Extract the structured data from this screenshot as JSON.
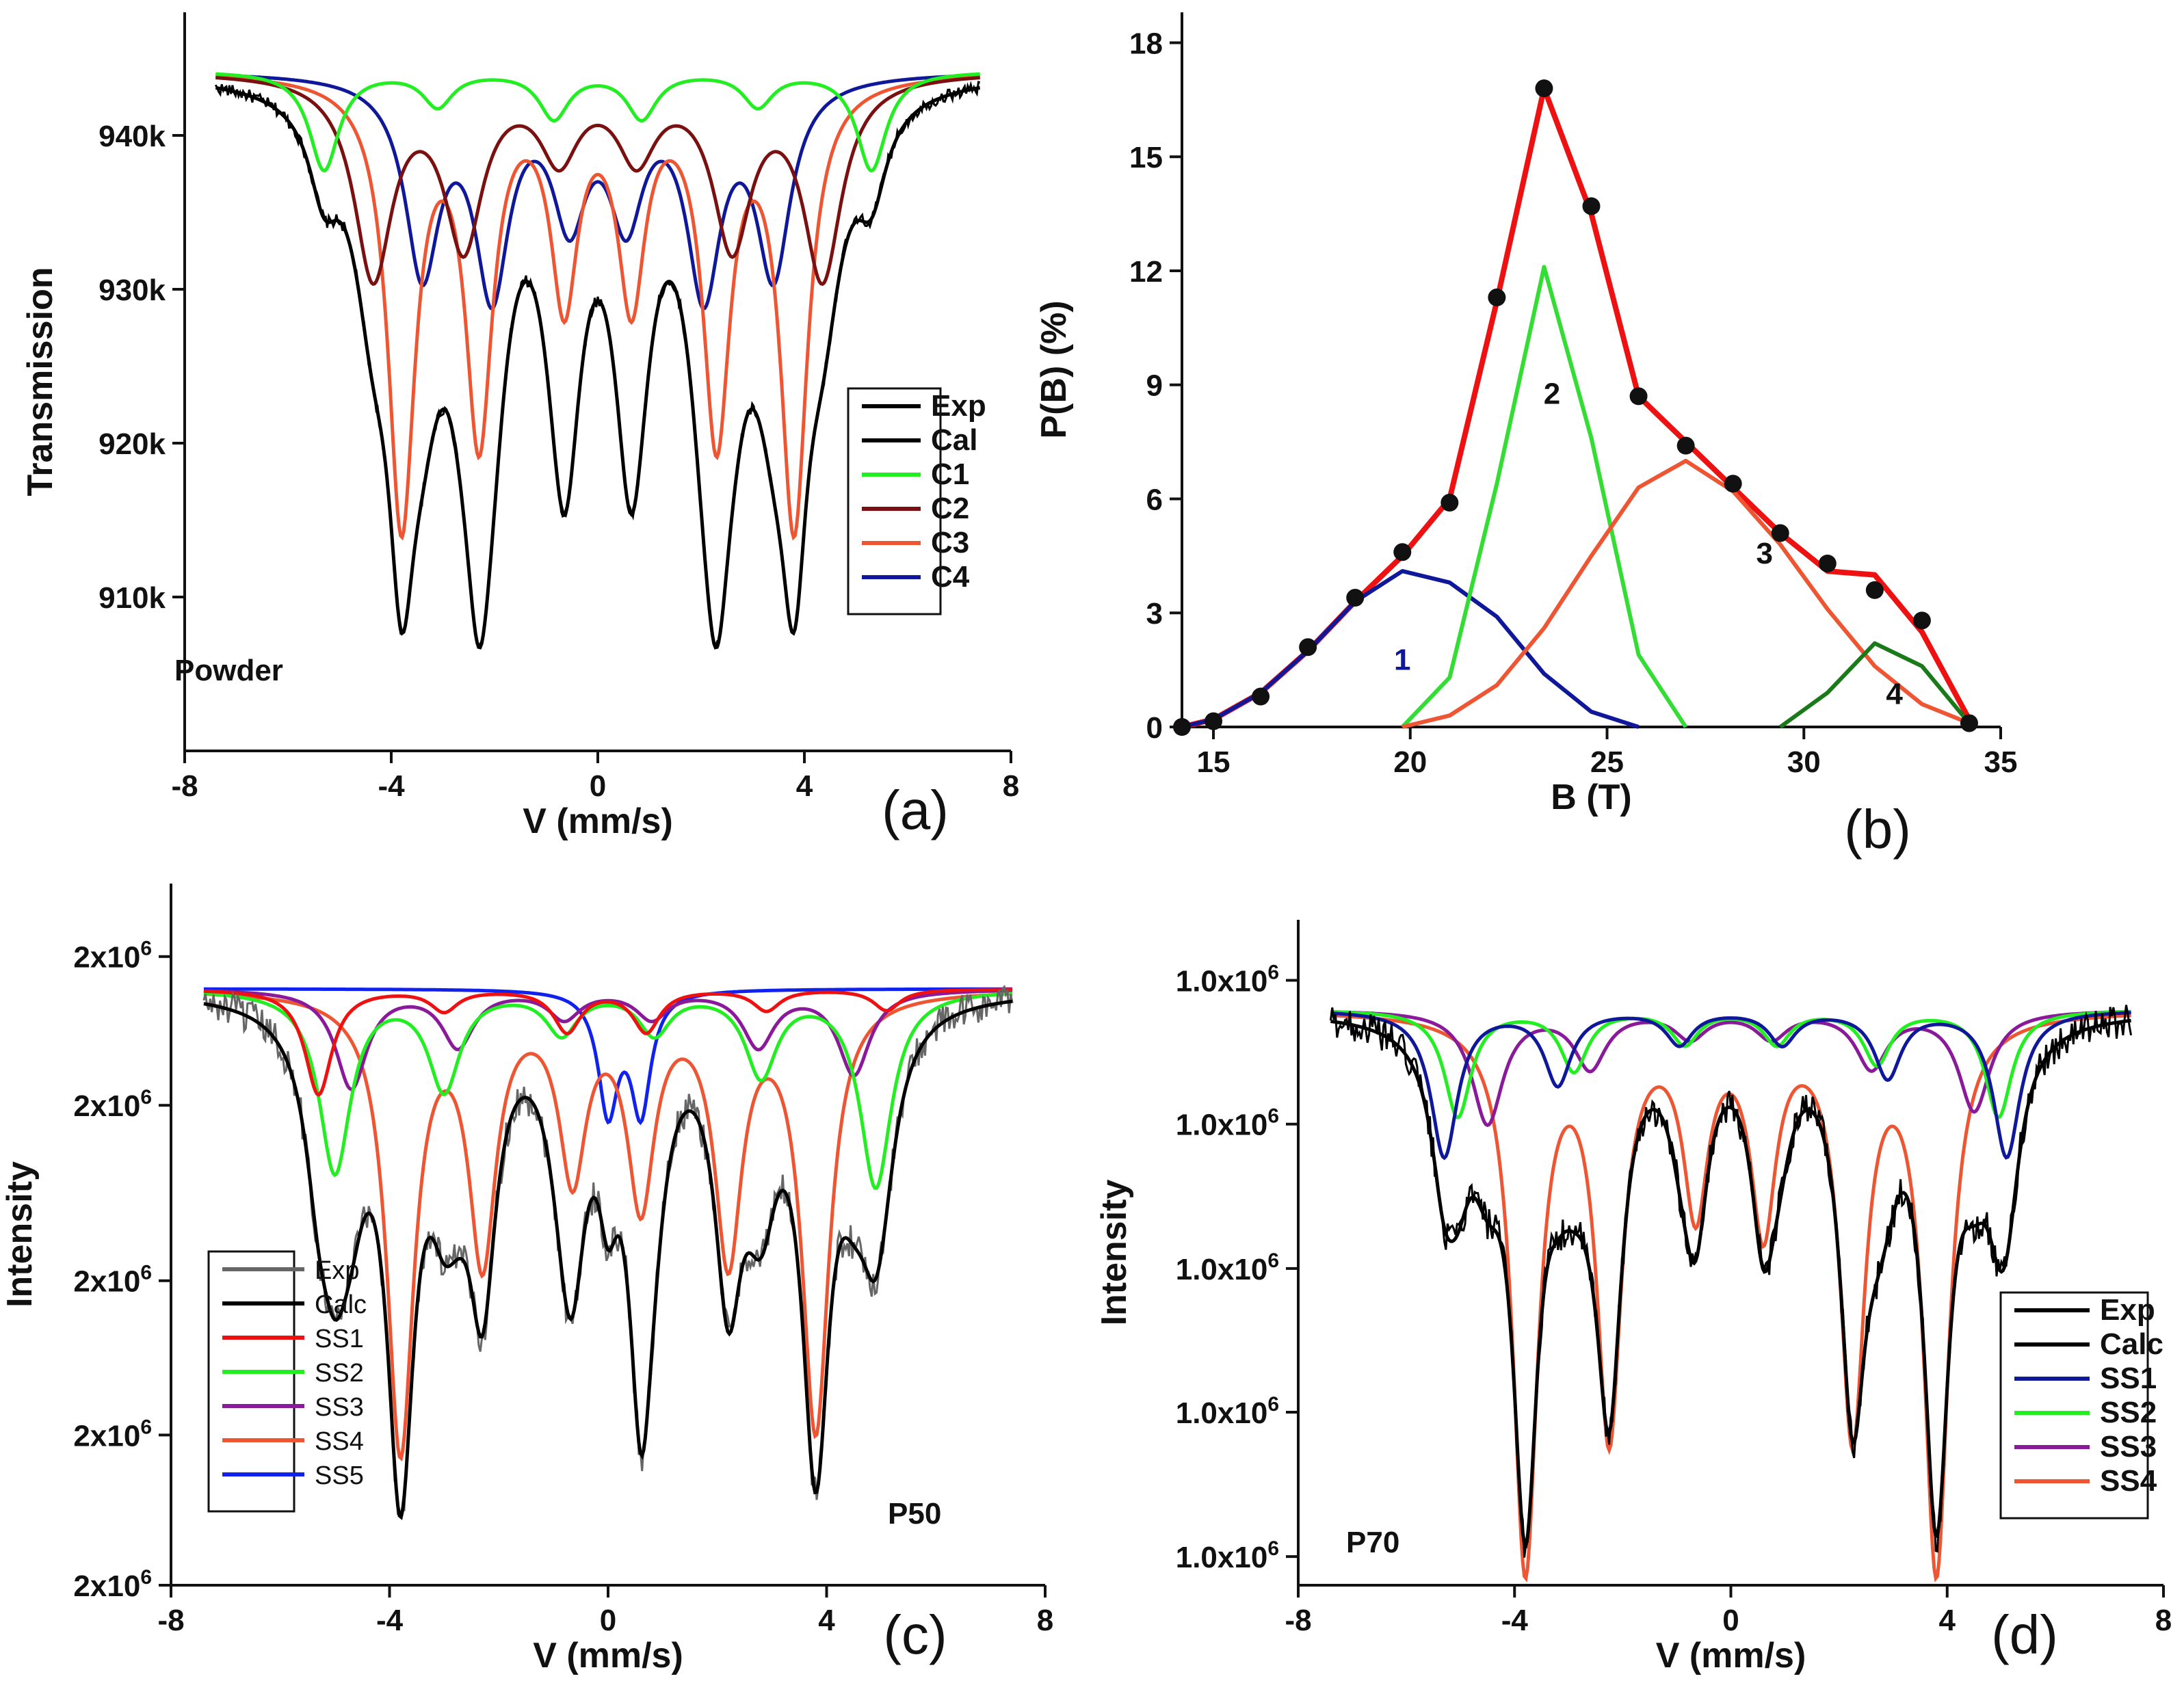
{
  "chart_data": [
    {
      "id": "a",
      "type": "line",
      "panel_caption": "(a)",
      "sample_label": "Powder",
      "xlabel": "V (mm/s)",
      "ylabel": "Transmission",
      "xlim": [
        -8,
        8
      ],
      "ylim": [
        900,
        948
      ],
      "xticks": [
        "-8",
        "-4",
        "0",
        "4",
        "8"
      ],
      "xtick_values": [
        -8,
        -4,
        0,
        4,
        8
      ],
      "yticks": [
        "910k",
        "920k",
        "930k",
        "940k"
      ],
      "ytick_values": [
        910,
        920,
        930,
        940
      ],
      "baseline": 944.2,
      "noise_amplitude": 0.4,
      "legend": [
        {
          "name": "Exp",
          "color": "#000000"
        },
        {
          "name": "Cal",
          "color": "#000000"
        },
        {
          "name": "C1",
          "color": "#22ee22"
        },
        {
          "name": "C2",
          "color": "#7a1010"
        },
        {
          "name": "C3",
          "color": "#ee5533"
        },
        {
          "name": "C4",
          "color": "#10189a"
        }
      ],
      "series": [
        {
          "name": "C1",
          "color": "#22ee22",
          "center": 0.0,
          "hyperfine": [
            -5.3,
            -3.1,
            -0.85,
            0.85,
            3.1,
            5.3
          ],
          "depth": [
            6.4,
            2.2,
            3.0,
            3.0,
            2.2,
            6.4
          ],
          "width": 0.35
        },
        {
          "name": "C2",
          "color": "#7a1010",
          "center": 0.0,
          "hyperfine": [
            -4.35,
            -2.6,
            -0.75,
            0.75,
            2.6,
            4.35
          ],
          "depth": [
            13.0,
            10.8,
            5.0,
            5.0,
            10.8,
            13.0
          ],
          "width": 0.45
        },
        {
          "name": "C3",
          "color": "#ee5533",
          "center": 0.0,
          "hyperfine": [
            -3.8,
            -2.3,
            -0.65,
            0.65,
            2.3,
            3.8
          ],
          "depth": [
            29.0,
            23.0,
            14.0,
            14.0,
            23.0,
            29.0
          ],
          "width": 0.32
        },
        {
          "name": "C4",
          "color": "#10189a",
          "center": 0.0,
          "hyperfine": [
            -3.4,
            -2.05,
            -0.55,
            0.55,
            2.05,
            3.4
          ],
          "depth": [
            12.5,
            13.5,
            8.5,
            8.5,
            13.5,
            12.5
          ],
          "width": 0.4
        }
      ]
    },
    {
      "id": "b",
      "type": "line",
      "panel_caption": "(b)",
      "xlabel": "B (T)",
      "ylabel": "P(B) (%)",
      "xlim": [
        14.2,
        35
      ],
      "ylim": [
        0,
        18.8
      ],
      "xticks": [
        "15",
        "20",
        "25",
        "30",
        "35"
      ],
      "xtick_values": [
        15,
        20,
        25,
        30,
        35
      ],
      "yticks": [
        "0",
        "3",
        "6",
        "9",
        "12",
        "15",
        "18"
      ],
      "ytick_values": [
        0,
        3,
        6,
        9,
        12,
        15,
        18
      ],
      "annotations": [
        {
          "text": "1",
          "x": 19.8,
          "y": 1.5,
          "color": "#10189a"
        },
        {
          "text": "2",
          "x": 23.6,
          "y": 8.5,
          "color": "#111111"
        },
        {
          "text": "3",
          "x": 29.0,
          "y": 4.3,
          "color": "#111111"
        },
        {
          "text": "4",
          "x": 32.3,
          "y": 0.6,
          "color": "#111111"
        }
      ],
      "scatter": {
        "name": "data",
        "color": "#111111",
        "x": [
          14.2,
          15.0,
          16.2,
          17.4,
          18.6,
          19.8,
          21.0,
          22.2,
          23.4,
          24.6,
          25.8,
          27.0,
          28.2,
          29.4,
          30.6,
          31.8,
          33.0,
          34.2
        ],
        "y": [
          0.0,
          0.15,
          0.8,
          2.1,
          3.4,
          4.6,
          5.9,
          11.3,
          16.8,
          13.7,
          8.7,
          7.4,
          6.4,
          5.1,
          4.3,
          3.6,
          2.8,
          0.1
        ]
      },
      "series": [
        {
          "name": "total",
          "color": "#ee1111",
          "x": [
            14.2,
            15.0,
            16.2,
            17.4,
            18.6,
            19.8,
            21.0,
            22.2,
            23.4,
            24.6,
            25.8,
            27.0,
            28.2,
            29.4,
            30.6,
            31.8,
            33.0,
            34.2
          ],
          "y": [
            0.0,
            0.2,
            0.9,
            2.0,
            3.3,
            4.5,
            6.0,
            11.2,
            16.8,
            13.5,
            8.7,
            7.5,
            6.3,
            5.1,
            4.1,
            4.0,
            2.5,
            0.2
          ]
        },
        {
          "name": "1",
          "color": "#10189a",
          "x": [
            14.2,
            15.0,
            16.2,
            17.4,
            18.6,
            19.8,
            21.0,
            22.2,
            23.4,
            24.6,
            25.8
          ],
          "y": [
            0.0,
            0.2,
            0.9,
            2.0,
            3.3,
            4.1,
            3.8,
            2.9,
            1.4,
            0.4,
            0.0
          ]
        },
        {
          "name": "2",
          "color": "#33dd33",
          "x": [
            19.8,
            21.0,
            22.2,
            23.4,
            24.6,
            25.8,
            27.0
          ],
          "y": [
            0.0,
            1.3,
            6.4,
            12.1,
            7.6,
            1.9,
            0.0
          ]
        },
        {
          "name": "3",
          "color": "#ee5533",
          "x": [
            19.8,
            21.0,
            22.2,
            23.4,
            24.6,
            25.8,
            27.0,
            28.2,
            29.4,
            30.6,
            31.8,
            33.0,
            34.2
          ],
          "y": [
            0.0,
            0.3,
            1.1,
            2.6,
            4.5,
            6.3,
            7.0,
            6.2,
            4.8,
            3.1,
            1.6,
            0.6,
            0.1
          ]
        },
        {
          "name": "4",
          "color": "#1a7a1a",
          "x": [
            29.4,
            30.6,
            31.8,
            33.0,
            34.2
          ],
          "y": [
            0.0,
            0.9,
            2.2,
            1.6,
            0.1
          ]
        }
      ]
    },
    {
      "id": "c",
      "type": "line",
      "panel_caption": "(c)",
      "sample_label": "P50",
      "xlabel": "V (mm/s)",
      "ylabel": "Intensity",
      "xlim": [
        -8,
        8
      ],
      "ylim": [
        0,
        100
      ],
      "xticks": [
        "-8",
        "-4",
        "0",
        "4",
        "8"
      ],
      "xtick_values": [
        -8,
        -4,
        0,
        4,
        8
      ],
      "yticks": [
        "2x10^6",
        "2x10^6",
        "2x10^6",
        "2x10^6",
        "2x10^6"
      ],
      "ytick_values": [
        0,
        21.4,
        43.4,
        68.4,
        89.6
      ],
      "baseline": 85.0,
      "noise_amplitude": 1.2,
      "legend": [
        {
          "name": "Exp",
          "color": "#666666"
        },
        {
          "name": "Calc",
          "color": "#000000"
        },
        {
          "name": "SS1",
          "color": "#ee1111"
        },
        {
          "name": "SS2",
          "color": "#22ee22"
        },
        {
          "name": "SS3",
          "color": "#8a1a9a"
        },
        {
          "name": "SS4",
          "color": "#ee5533"
        },
        {
          "name": "SS5",
          "color": "#1122ee"
        }
      ],
      "series": [
        {
          "name": "SS1",
          "color": "#ee1111",
          "center": 0.0,
          "hyperfine": [
            -5.3,
            -3.0,
            -0.75,
            0.7,
            2.9,
            5.1
          ],
          "depth": [
            15.0,
            3.0,
            6.0,
            6.0,
            3.0,
            3.0
          ],
          "width": 0.3
        },
        {
          "name": "SS2",
          "color": "#22ee22",
          "center": 0.0,
          "hyperfine": [
            -5.0,
            -3.0,
            -0.85,
            0.85,
            2.8,
            4.9
          ],
          "depth": [
            26.0,
            14.0,
            6.0,
            6.0,
            12.0,
            28.0
          ],
          "width": 0.35
        },
        {
          "name": "SS3",
          "color": "#8a1a9a",
          "center": 0.0,
          "hyperfine": [
            -4.7,
            -2.75,
            -0.8,
            0.8,
            2.75,
            4.5
          ],
          "depth": [
            14.0,
            8.0,
            4.0,
            4.0,
            8.0,
            12.0
          ],
          "width": 0.35
        },
        {
          "name": "SS4",
          "color": "#ee5533",
          "center": 0.0,
          "hyperfine": [
            -3.8,
            -2.3,
            -0.65,
            0.6,
            2.2,
            3.8
          ],
          "depth": [
            65.0,
            37.0,
            25.0,
            29.0,
            37.0,
            62.0
          ],
          "width": 0.3
        },
        {
          "name": "SS5",
          "color": "#1122ee",
          "center": 0.0,
          "hyperfine": [
            0.0,
            0.6
          ],
          "depth": [
            17.0,
            17.0
          ],
          "width": 0.22
        }
      ]
    },
    {
      "id": "d",
      "type": "line",
      "panel_caption": "(d)",
      "sample_label": "P70",
      "xlabel": "V (mm/s)",
      "ylabel": "Intensity",
      "xlim": [
        -8,
        8
      ],
      "ylim": [
        0,
        100
      ],
      "xticks": [
        "-8",
        "-4",
        "0",
        "4",
        "8"
      ],
      "xtick_values": [
        -8,
        -4,
        0,
        4,
        8
      ],
      "yticks": [
        "1.0x10^6",
        "1.0x10^6",
        "1.0x10^6",
        "1.0x10^6",
        "1.0x10^6"
      ],
      "ytick_values": [
        4.3,
        26.0,
        47.6,
        69.3,
        90.9
      ],
      "baseline": 86.5,
      "noise_amplitude": 1.2,
      "legend": [
        {
          "name": "Exp",
          "color": "#000000"
        },
        {
          "name": "Calc",
          "color": "#000000"
        },
        {
          "name": "SS1",
          "color": "#10189a"
        },
        {
          "name": "SS2",
          "color": "#22ee22"
        },
        {
          "name": "SS3",
          "color": "#8a1a9a"
        },
        {
          "name": "SS4",
          "color": "#ee5533"
        }
      ],
      "series": [
        {
          "name": "SS1",
          "color": "#10189a",
          "center": 0.0,
          "hyperfine": [
            -5.3,
            -3.2,
            -0.95,
            0.95,
            2.9,
            5.1
          ],
          "depth": [
            22.0,
            11.0,
            5.0,
            5.0,
            10.0,
            22.0
          ],
          "width": 0.3
        },
        {
          "name": "SS2",
          "color": "#22ee22",
          "center": 0.0,
          "hyperfine": [
            -5.05,
            -2.9,
            -0.85,
            0.85,
            2.7,
            4.95
          ],
          "depth": [
            16.0,
            9.0,
            5.0,
            5.0,
            8.0,
            16.0
          ],
          "width": 0.3
        },
        {
          "name": "SS3",
          "color": "#8a1a9a",
          "center": 0.0,
          "hyperfine": [
            -4.5,
            -2.6,
            -0.75,
            0.75,
            2.6,
            4.5
          ],
          "depth": [
            17.0,
            8.5,
            4.0,
            4.0,
            8.5,
            15.0
          ],
          "width": 0.35
        },
        {
          "name": "SS4",
          "color": "#ee5533",
          "center": 0.0,
          "hyperfine": [
            -3.8,
            -2.25,
            -0.65,
            0.6,
            2.25,
            3.8
          ],
          "depth": [
            83.0,
            62.0,
            28.0,
            31.0,
            62.0,
            83.0
          ],
          "width": 0.28
        }
      ]
    }
  ]
}
